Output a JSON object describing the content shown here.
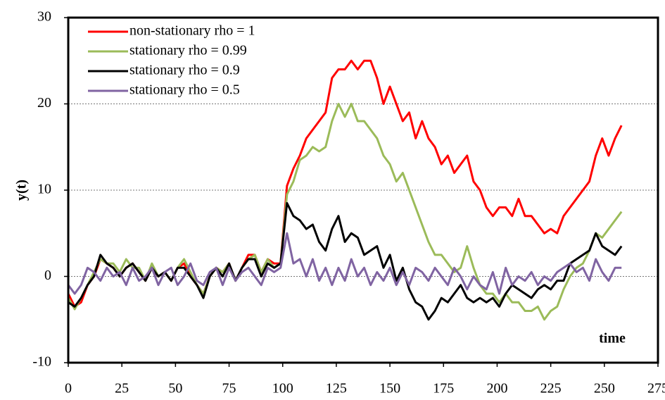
{
  "chart_data": {
    "type": "line",
    "x_label": "time",
    "y_label": "y(t)",
    "x": [
      0,
      3,
      6,
      9,
      12,
      15,
      18,
      21,
      24,
      27,
      30,
      33,
      36,
      39,
      42,
      45,
      48,
      51,
      54,
      57,
      60,
      63,
      66,
      69,
      72,
      75,
      78,
      81,
      84,
      87,
      90,
      93,
      96,
      99,
      102,
      105,
      108,
      111,
      114,
      117,
      120,
      123,
      126,
      129,
      132,
      135,
      138,
      141,
      144,
      147,
      150,
      153,
      156,
      159,
      162,
      165,
      168,
      171,
      174,
      177,
      180,
      183,
      186,
      189,
      192,
      195,
      198,
      201,
      204,
      207,
      210,
      213,
      216,
      219,
      222,
      225,
      228,
      231,
      234,
      237,
      240,
      243,
      246,
      249,
      252,
      255,
      258
    ],
    "series": [
      {
        "name": "non-stationary rho = 1",
        "color": "#ff0000",
        "values": [
          -2,
          -3.5,
          -3,
          -1,
          0,
          2,
          1.5,
          1,
          0,
          1,
          1.5,
          0.5,
          -0.5,
          1,
          0,
          0.5,
          -0.5,
          1,
          1.5,
          0,
          -1,
          -2,
          0,
          1,
          0.5,
          1.5,
          -0.5,
          1,
          2.5,
          2.5,
          0.5,
          2,
          1.5,
          1.5,
          10.5,
          12.5,
          14,
          16,
          17,
          18,
          19,
          23,
          24,
          24,
          25,
          24,
          25,
          25,
          23,
          20,
          22,
          20,
          18,
          19,
          16,
          18,
          16,
          15,
          13,
          14,
          12,
          13,
          14,
          11,
          10,
          8,
          7,
          8,
          8,
          7,
          9,
          7,
          7,
          6,
          5,
          5.5,
          5,
          7,
          8,
          9,
          10,
          11,
          14,
          16,
          14,
          16,
          17.5
        ]
      },
      {
        "name": "stationary rho = 0.99",
        "color": "#9bbb59",
        "values": [
          -2.5,
          -3.8,
          -2.5,
          -1,
          0.5,
          2,
          1.5,
          1.5,
          0.5,
          2,
          1,
          1,
          -0.5,
          1.5,
          0,
          0.5,
          -0.5,
          1,
          2,
          0.5,
          -1,
          -2,
          0,
          1,
          0.5,
          1.5,
          -0.5,
          1,
          2,
          2.5,
          0.5,
          2,
          1,
          1.5,
          9.5,
          11,
          13.5,
          14,
          15,
          14.5,
          15,
          18,
          20,
          18.5,
          20,
          18,
          18,
          17,
          16,
          14,
          13,
          11,
          12,
          10,
          8,
          6,
          4,
          2.5,
          2.5,
          1.5,
          0.5,
          1,
          3.5,
          1,
          -1,
          -2,
          -2,
          -3,
          -2,
          -3,
          -3,
          -4,
          -4,
          -3.5,
          -5,
          -4,
          -3.5,
          -1.5,
          0,
          1,
          1.5,
          3,
          5,
          4.5,
          5.5,
          6.5,
          7.5
        ]
      },
      {
        "name": "stationary rho = 0.9",
        "color": "#000000",
        "values": [
          -3,
          -3.5,
          -2.5,
          -1,
          0,
          2.5,
          1.5,
          1,
          0,
          1,
          1.5,
          0.5,
          -0.5,
          1,
          0,
          0.5,
          -0.5,
          1,
          1,
          0,
          -1,
          -2.5,
          0,
          1,
          0,
          1.5,
          -0.5,
          1,
          2,
          2,
          0,
          1.5,
          1,
          1.5,
          8.5,
          7,
          6.5,
          5.5,
          6,
          4,
          3,
          5.5,
          7,
          4,
          5,
          4.5,
          2.5,
          3,
          3.5,
          1,
          2.5,
          -0.5,
          1,
          -1.5,
          -3,
          -3.5,
          -5,
          -4,
          -2.5,
          -3,
          -2,
          -1,
          -2.5,
          -3,
          -2.5,
          -3,
          -2.5,
          -3.5,
          -2,
          -1,
          -1.5,
          -2,
          -2.5,
          -1.5,
          -1,
          -1.5,
          -0.5,
          -0.5,
          1.5,
          2,
          2.5,
          3,
          5,
          3.5,
          3,
          2.5,
          3.5
        ]
      },
      {
        "name": "stationary rho = 0.5",
        "color": "#8064a2",
        "values": [
          -1,
          -2,
          -1,
          1,
          0.5,
          -0.5,
          1,
          0,
          0.5,
          -1,
          1,
          -0.5,
          0,
          1,
          -1,
          0.5,
          1,
          -1,
          0,
          1.5,
          -0.5,
          -1,
          0.5,
          1,
          -1,
          1,
          -0.5,
          0.5,
          1,
          0,
          -1,
          1,
          0.5,
          1,
          5,
          1.5,
          2,
          0,
          2,
          -0.5,
          1,
          -1,
          1,
          -0.5,
          2,
          0,
          1,
          -1,
          0.5,
          -0.5,
          1,
          -1,
          0.5,
          -1,
          1,
          0.5,
          -0.5,
          1,
          0,
          -1,
          1,
          0,
          -1.5,
          0,
          -1,
          -1.5,
          0.5,
          -2,
          1,
          -1,
          0,
          -0.5,
          0.5,
          -1,
          0,
          -0.5,
          0.5,
          1,
          1.5,
          0.5,
          1,
          -0.5,
          2,
          0.5,
          -0.5,
          1,
          1
        ]
      }
    ],
    "xlim": [
      0,
      275
    ],
    "xticks": [
      0,
      25,
      50,
      75,
      100,
      125,
      150,
      175,
      200,
      225,
      250,
      275
    ],
    "ylim": [
      -10,
      30
    ],
    "yticks": [
      -10,
      0,
      10,
      20,
      30
    ],
    "grid": true,
    "legend": "upper left"
  }
}
